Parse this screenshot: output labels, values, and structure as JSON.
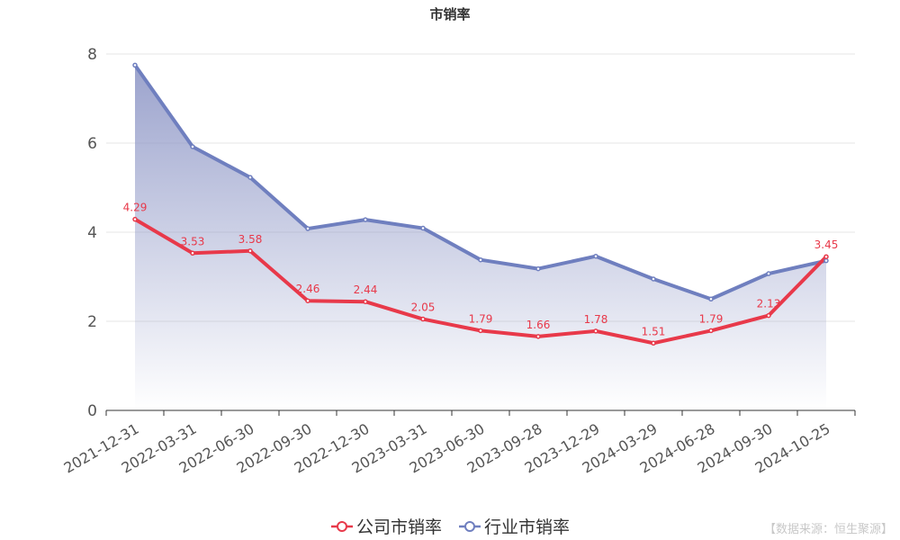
{
  "chart_data": {
    "type": "line",
    "title": "市销率",
    "categories": [
      "2021-12-31",
      "2022-03-31",
      "2022-06-30",
      "2022-09-30",
      "2022-12-30",
      "2023-03-31",
      "2023-06-30",
      "2023-09-28",
      "2023-12-29",
      "2024-03-29",
      "2024-06-28",
      "2024-09-30",
      "2024-10-25"
    ],
    "series": [
      {
        "name": "公司市销率",
        "color": "#e8394a",
        "values": [
          4.29,
          3.53,
          3.58,
          2.46,
          2.44,
          2.05,
          1.79,
          1.66,
          1.78,
          1.51,
          1.79,
          2.13,
          3.45
        ],
        "labels": [
          "4.29",
          "3.53",
          "3.58",
          "2.46",
          "2.44",
          "2.05",
          "1.79",
          "1.66",
          "1.78",
          "1.51",
          "1.79",
          "2.13",
          "3.45"
        ]
      },
      {
        "name": "行业市销率",
        "color": "#6f7fbf",
        "area": true,
        "values": [
          7.75,
          5.92,
          5.23,
          4.08,
          4.28,
          4.09,
          3.38,
          3.18,
          3.46,
          2.95,
          2.5,
          3.07,
          3.36
        ]
      }
    ],
    "ylim": [
      0,
      8
    ],
    "yticks": [
      "0",
      "2",
      "4",
      "6",
      "8"
    ],
    "grid": true,
    "legend_position": "bottom-center"
  },
  "source_label": "【数据来源：恒生聚源】"
}
